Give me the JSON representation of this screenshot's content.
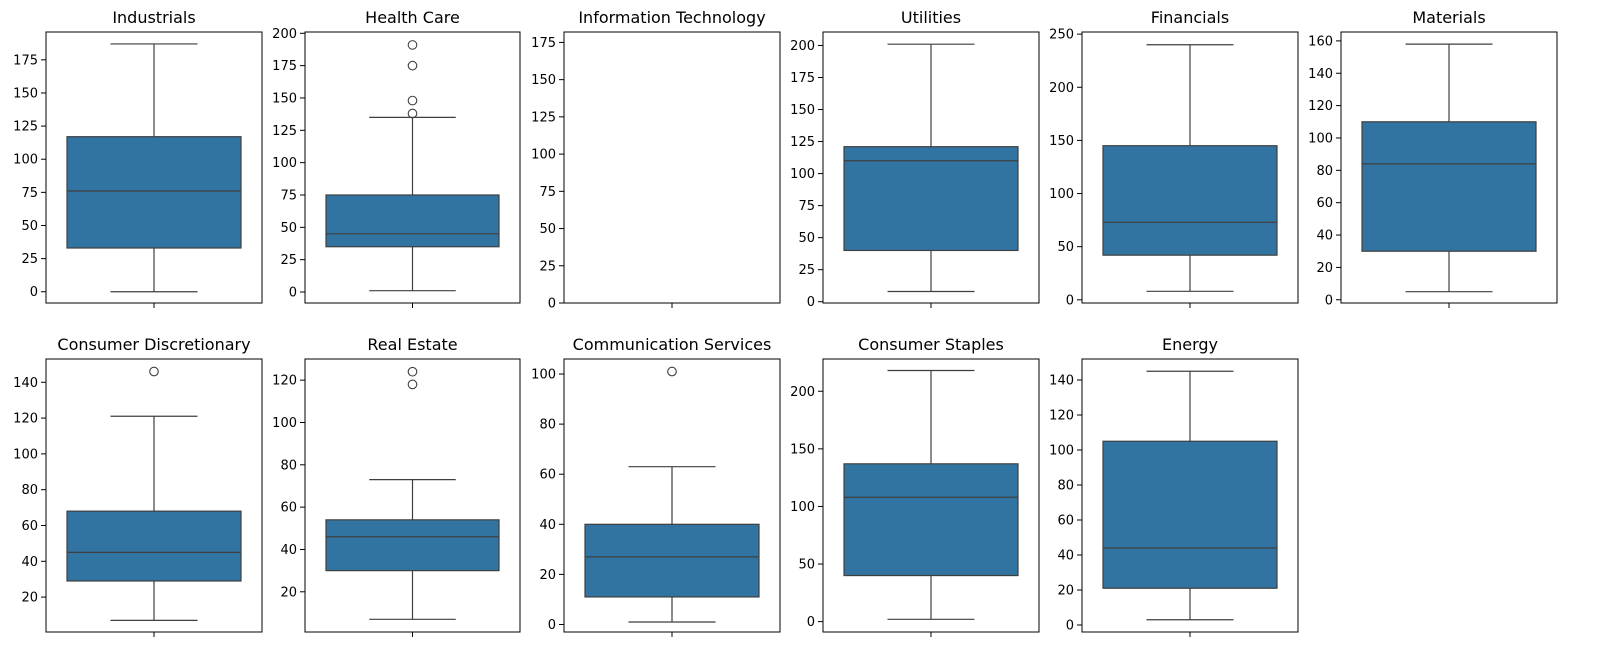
{
  "chart_data": [
    {
      "type": "box",
      "title": "Industrials",
      "yticks": [
        0,
        25,
        50,
        75,
        100,
        125,
        150,
        175
      ],
      "ylim": [
        -8.5,
        196
      ],
      "box": {
        "whisker_low": 0,
        "q1": 33,
        "median": 76,
        "q3": 117,
        "whisker_high": 187
      },
      "outliers": []
    },
    {
      "type": "box",
      "title": "Health Care",
      "yticks": [
        0,
        25,
        50,
        75,
        100,
        125,
        150,
        175,
        200
      ],
      "ylim": [
        -8.5,
        201
      ],
      "box": {
        "whisker_low": 1,
        "q1": 35,
        "median": 45,
        "q3": 75,
        "whisker_high": 135
      },
      "outliers": [
        138,
        148,
        175,
        191
      ]
    },
    {
      "type": "box",
      "title": "Information Technology",
      "yticks": [
        0,
        25,
        50,
        75,
        100,
        125,
        150,
        175
      ],
      "ylim": [
        0,
        182
      ]
    },
    {
      "type": "box",
      "title": "Utilities",
      "yticks": [
        0,
        25,
        50,
        75,
        100,
        125,
        150,
        175,
        200
      ],
      "ylim": [
        -1,
        210.5
      ],
      "box": {
        "whisker_low": 8,
        "q1": 40,
        "median": 110,
        "q3": 121,
        "whisker_high": 201
      },
      "outliers": []
    },
    {
      "type": "box",
      "title": "Financials",
      "yticks": [
        0,
        50,
        100,
        150,
        200,
        250
      ],
      "ylim": [
        -3,
        252
      ],
      "box": {
        "whisker_low": 8,
        "q1": 42,
        "median": 73,
        "q3": 145,
        "whisker_high": 240
      },
      "outliers": []
    },
    {
      "type": "box",
      "title": "Materials",
      "yticks": [
        0,
        20,
        40,
        60,
        80,
        100,
        120,
        140,
        160
      ],
      "ylim": [
        -2,
        165.5
      ],
      "box": {
        "whisker_low": 5,
        "q1": 30,
        "median": 84,
        "q3": 110,
        "whisker_high": 158
      },
      "outliers": []
    },
    {
      "type": "box",
      "title": "Consumer Discretionary",
      "yticks": [
        20,
        40,
        60,
        80,
        100,
        120,
        140
      ],
      "ylim": [
        0.5,
        153
      ],
      "box": {
        "whisker_low": 7,
        "q1": 29,
        "median": 45,
        "q3": 68,
        "whisker_high": 121
      },
      "outliers": [
        146
      ]
    },
    {
      "type": "box",
      "title": "Real Estate",
      "yticks": [
        20,
        40,
        60,
        80,
        100,
        120
      ],
      "ylim": [
        1,
        130
      ],
      "box": {
        "whisker_low": 7,
        "q1": 30,
        "median": 46,
        "q3": 54,
        "whisker_high": 73
      },
      "outliers": [
        118,
        124
      ]
    },
    {
      "type": "box",
      "title": "Communication Services",
      "yticks": [
        0,
        20,
        40,
        60,
        80,
        100
      ],
      "ylim": [
        -3,
        106
      ],
      "box": {
        "whisker_low": 1,
        "q1": 11,
        "median": 27,
        "q3": 40,
        "whisker_high": 63
      },
      "outliers": [
        101
      ]
    },
    {
      "type": "box",
      "title": "Consumer Staples",
      "yticks": [
        0,
        50,
        100,
        150,
        200
      ],
      "ylim": [
        -9,
        228
      ],
      "box": {
        "whisker_low": 2,
        "q1": 40,
        "median": 108,
        "q3": 137,
        "whisker_high": 218
      },
      "outliers": []
    },
    {
      "type": "box",
      "title": "Energy",
      "yticks": [
        0,
        20,
        40,
        60,
        80,
        100,
        120,
        140
      ],
      "ylim": [
        -4,
        152
      ],
      "box": {
        "whisker_low": 3,
        "q1": 21,
        "median": 44,
        "q3": 105,
        "whisker_high": 145
      },
      "outliers": []
    }
  ]
}
